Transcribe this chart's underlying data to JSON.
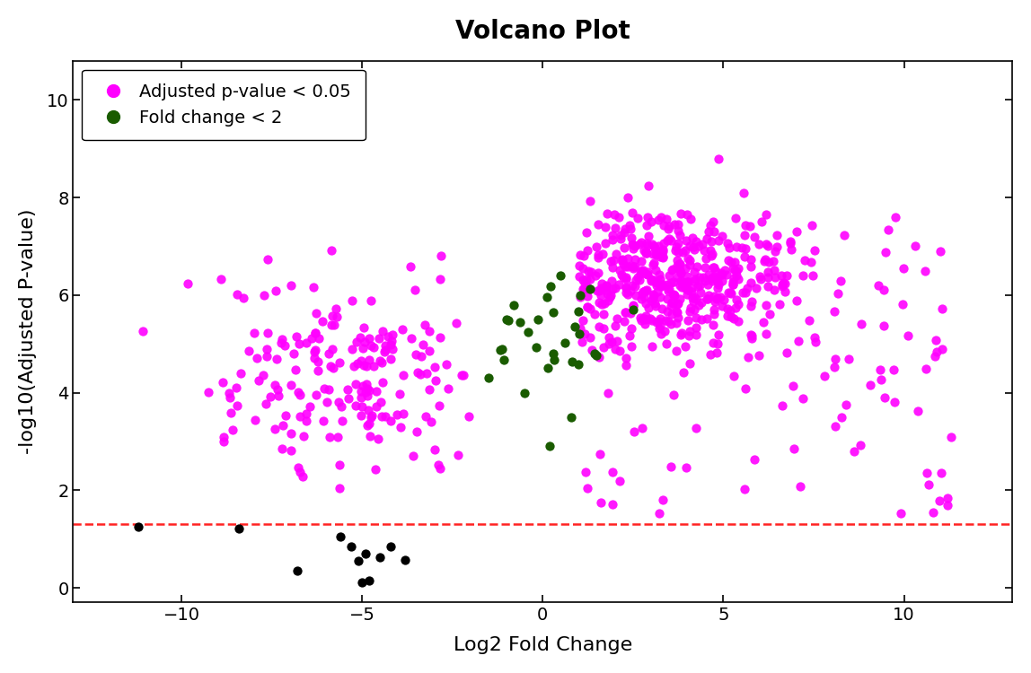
{
  "title": "Volcano Plot",
  "xlabel": "Log2 Fold Change",
  "ylabel": "-log10(Adjusted P-value)",
  "xlim": [
    -13,
    13
  ],
  "ylim": [
    -0.3,
    10.8
  ],
  "xticks": [
    -10,
    -5,
    0,
    5,
    10
  ],
  "yticks": [
    0,
    2,
    4,
    6,
    8,
    10
  ],
  "sig_threshold": 1.3,
  "hline_color": "#FF2222",
  "magenta_color": "#FF00FF",
  "dark_green_color": "#1A5C00",
  "black_color": "#000000",
  "title_fontsize": 20,
  "axis_label_fontsize": 16,
  "tick_fontsize": 14,
  "legend_fontsize": 14,
  "background_color": "#FFFFFF",
  "figsize": [
    11.48,
    7.5
  ],
  "dpi": 100
}
